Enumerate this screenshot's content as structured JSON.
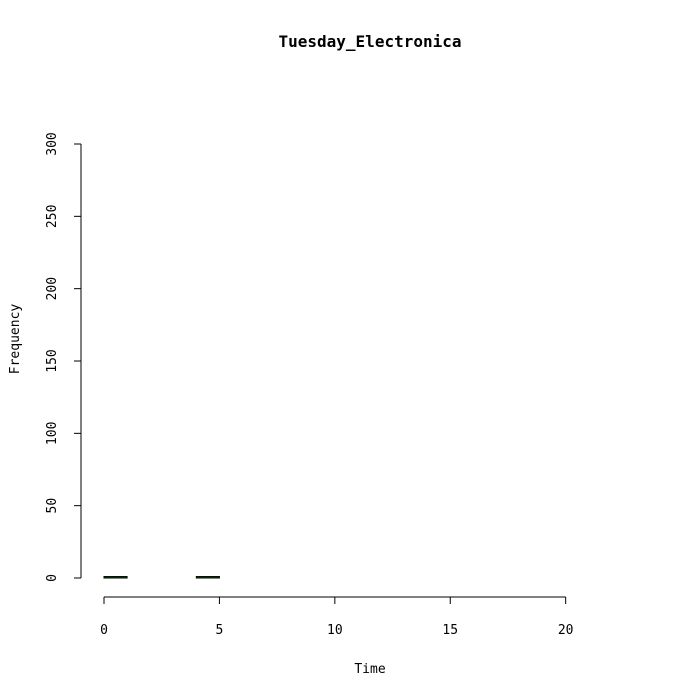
{
  "chart_data": {
    "type": "bar",
    "title": "Tuesday_Electronica",
    "xlabel": "Time",
    "ylabel": "Frequency",
    "xlim": [
      0,
      24
    ],
    "ylim": [
      0,
      300
    ],
    "x_ticks": [
      0,
      5,
      10,
      15,
      20
    ],
    "y_ticks": [
      0,
      50,
      100,
      150,
      200,
      250,
      300
    ],
    "bin_width": 1,
    "bins": [
      {
        "x0": 0,
        "x1": 1,
        "value": 1
      },
      {
        "x0": 1,
        "x1": 2,
        "value": 0
      },
      {
        "x0": 2,
        "x1": 3,
        "value": 0
      },
      {
        "x0": 3,
        "x1": 4,
        "value": 0
      },
      {
        "x0": 4,
        "x1": 5,
        "value": 1
      },
      {
        "x0": 5,
        "x1": 6,
        "value": 0
      },
      {
        "x0": 6,
        "x1": 7,
        "value": 0
      },
      {
        "x0": 7,
        "x1": 8,
        "value": 0
      },
      {
        "x0": 8,
        "x1": 9,
        "value": 0
      },
      {
        "x0": 9,
        "x1": 10,
        "value": 0
      },
      {
        "x0": 10,
        "x1": 11,
        "value": 0
      },
      {
        "x0": 11,
        "x1": 12,
        "value": 0
      },
      {
        "x0": 12,
        "x1": 13,
        "value": 0
      },
      {
        "x0": 13,
        "x1": 14,
        "value": 0
      },
      {
        "x0": 14,
        "x1": 15,
        "value": 0
      },
      {
        "x0": 15,
        "x1": 16,
        "value": 0
      },
      {
        "x0": 16,
        "x1": 17,
        "value": 0
      },
      {
        "x0": 17,
        "x1": 18,
        "value": 0
      },
      {
        "x0": 18,
        "x1": 19,
        "value": 0
      },
      {
        "x0": 19,
        "x1": 20,
        "value": 0
      },
      {
        "x0": 20,
        "x1": 21,
        "value": 0
      },
      {
        "x0": 21,
        "x1": 22,
        "value": 0
      },
      {
        "x0": 22,
        "x1": 23,
        "value": 0
      },
      {
        "x0": 23,
        "x1": 24,
        "value": 0
      }
    ],
    "bar_fill": "#006400",
    "bar_stroke": "#000000",
    "grid": false,
    "legend": "none"
  }
}
